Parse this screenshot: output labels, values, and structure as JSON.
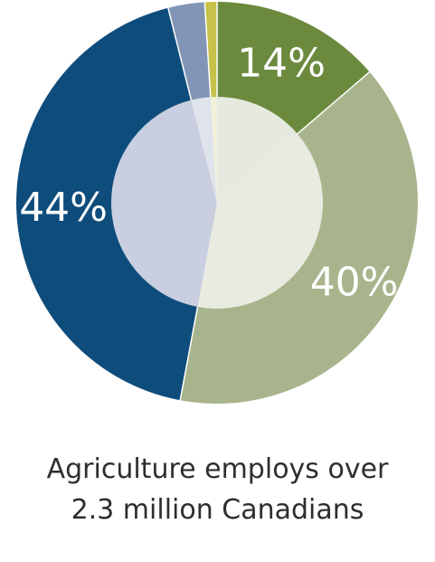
{
  "chart_data": {
    "type": "pie",
    "variant": "donut",
    "slices": [
      {
        "label": "14%",
        "value": 14,
        "color": "#6b8a3e",
        "inner_color": "#e6e9de",
        "shown_label": true
      },
      {
        "label": "40%",
        "value": 40,
        "color": "#a8b48c",
        "inner_color": "#e9ebe1",
        "shown_label": true
      },
      {
        "label": "44%",
        "value": 44,
        "color": "#0e4c7c",
        "inner_color": "#c9cfe0",
        "shown_label": true
      },
      {
        "label": "",
        "value": 3,
        "color": "#8295b6",
        "inner_color": "#dfe4ec",
        "shown_label": false
      },
      {
        "label": "",
        "value": 1,
        "color": "#c6c24a",
        "inner_color": "#f1f0d8",
        "shown_label": false
      }
    ],
    "title": "",
    "legend": "none"
  },
  "caption": {
    "line1": "Agriculture employs over",
    "line2": "2.3 million Canadians"
  }
}
